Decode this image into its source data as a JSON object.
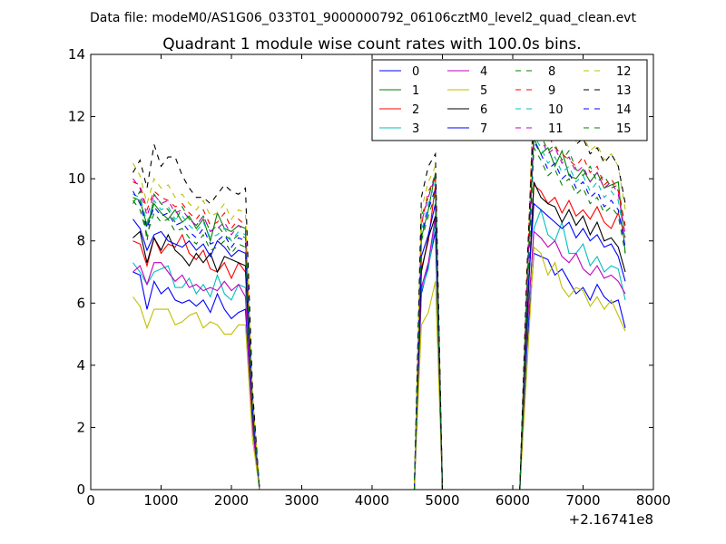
{
  "chart_data": {
    "type": "line",
    "suptitle": "Data file: modeM0/AS1G06_033T01_9000000792_06106cztM0_level2_quad_clean.evt",
    "title": "Quadrant 1 module wise count rates with 100.0s bins.",
    "xlabel": "",
    "ylabel": "",
    "x_offset_label": "+2.16741e8",
    "xlim": [
      0,
      8000
    ],
    "ylim": [
      0,
      14
    ],
    "x_ticks": [
      0,
      1000,
      2000,
      3000,
      4000,
      5000,
      6000,
      7000,
      8000
    ],
    "y_ticks": [
      0,
      2,
      4,
      6,
      8,
      10,
      12,
      14
    ],
    "x_tick_labels": [
      "0",
      "1000",
      "2000",
      "3000",
      "4000",
      "5000",
      "6000",
      "7000",
      "8000"
    ],
    "y_tick_labels": [
      "0",
      "2",
      "4",
      "6",
      "8",
      "10",
      "12",
      "14"
    ],
    "grid": false,
    "legend_position": "top-right",
    "legend_labels": [
      "0",
      "1",
      "2",
      "3",
      "4",
      "5",
      "6",
      "7",
      "8",
      "9",
      "10",
      "11",
      "12",
      "13",
      "14",
      "15"
    ],
    "x": [
      600,
      700,
      800,
      900,
      1000,
      1100,
      1200,
      1300,
      1400,
      1500,
      1600,
      1700,
      1800,
      1900,
      2000,
      2100,
      2200,
      2300,
      2400,
      2500,
      4600,
      4700,
      4800,
      4900,
      5000,
      6100,
      6200,
      6300,
      6400,
      6500,
      6600,
      6700,
      6800,
      6900,
      7000,
      7100,
      7200,
      7300,
      7400,
      7500,
      7600
    ],
    "series": [
      {
        "name": "0",
        "color": "#0000ff",
        "dashed": false,
        "values": [
          7.0,
          6.9,
          5.8,
          6.7,
          6.3,
          6.5,
          6.1,
          6.0,
          6.1,
          5.9,
          6.1,
          5.7,
          6.3,
          5.8,
          5.5,
          5.7,
          5.8,
          2.0,
          0.0,
          0.0,
          0.0,
          6.3,
          7.2,
          8.3,
          0.0,
          0.0,
          4.5,
          7.6,
          7.5,
          7.4,
          6.9,
          7.1,
          6.7,
          6.3,
          6.5,
          6.1,
          6.6,
          6.2,
          6.0,
          6.1,
          5.2
        ]
      },
      {
        "name": "1",
        "color": "#008000",
        "dashed": false,
        "values": [
          9.4,
          9.3,
          8.5,
          9.2,
          8.9,
          8.7,
          9.0,
          8.6,
          8.8,
          8.4,
          8.7,
          8.0,
          8.9,
          8.4,
          8.3,
          8.5,
          8.4,
          3.0,
          0.0,
          0.0,
          0.0,
          8.1,
          9.0,
          10.2,
          0.0,
          0.0,
          6.5,
          11.3,
          10.8,
          11.0,
          10.4,
          10.9,
          10.1,
          10.0,
          10.3,
          9.9,
          10.2,
          9.7,
          9.8,
          9.9,
          7.6
        ]
      },
      {
        "name": "2",
        "color": "#ff0000",
        "dashed": false,
        "values": [
          8.0,
          7.9,
          7.2,
          8.1,
          7.6,
          7.9,
          7.8,
          8.2,
          7.6,
          7.4,
          7.7,
          7.1,
          7.0,
          7.3,
          6.8,
          7.3,
          7.0,
          2.5,
          0.0,
          0.0,
          0.0,
          7.1,
          8.0,
          9.8,
          0.0,
          0.0,
          5.5,
          9.8,
          9.6,
          9.2,
          9.4,
          8.9,
          9.3,
          8.8,
          9.0,
          8.7,
          9.1,
          8.6,
          8.4,
          8.9,
          8.1
        ]
      },
      {
        "name": "3",
        "color": "#00bfbf",
        "dashed": false,
        "values": [
          7.3,
          7.0,
          6.6,
          7.0,
          7.1,
          7.2,
          6.5,
          6.5,
          6.8,
          6.3,
          6.6,
          6.2,
          6.9,
          6.3,
          6.1,
          6.6,
          6.5,
          2.1,
          0.0,
          0.0,
          0.0,
          6.4,
          7.1,
          8.6,
          0.0,
          0.0,
          4.8,
          8.4,
          9.0,
          8.2,
          8.0,
          8.6,
          7.6,
          7.6,
          7.9,
          7.2,
          7.5,
          7.0,
          7.2,
          7.1,
          6.1
        ]
      },
      {
        "name": "4",
        "color": "#bf00bf",
        "dashed": false,
        "values": [
          7.0,
          7.2,
          6.6,
          7.3,
          7.3,
          7.0,
          6.7,
          6.9,
          6.5,
          6.6,
          6.4,
          6.5,
          6.4,
          6.7,
          6.4,
          6.6,
          6.2,
          2.0,
          0.0,
          0.0,
          0.0,
          6.5,
          7.3,
          8.8,
          0.0,
          0.0,
          5.0,
          8.3,
          8.1,
          7.8,
          8.0,
          7.5,
          7.3,
          7.6,
          7.1,
          6.9,
          7.2,
          6.8,
          6.9,
          6.7,
          6.3
        ]
      },
      {
        "name": "5",
        "color": "#bfbf00",
        "dashed": false,
        "values": [
          6.2,
          5.9,
          5.2,
          5.8,
          5.8,
          5.8,
          5.3,
          5.4,
          5.6,
          5.7,
          5.2,
          5.4,
          5.3,
          5.0,
          5.0,
          5.3,
          5.3,
          1.6,
          0.0,
          0.0,
          0.0,
          5.3,
          5.7,
          6.7,
          0.0,
          0.0,
          3.8,
          7.8,
          7.6,
          6.9,
          7.3,
          6.5,
          6.2,
          6.5,
          6.4,
          5.9,
          6.2,
          5.8,
          6.1,
          5.6,
          5.1
        ]
      },
      {
        "name": "6",
        "color": "#000000",
        "dashed": false,
        "values": [
          8.1,
          8.3,
          7.3,
          8.1,
          7.7,
          8.2,
          7.7,
          7.5,
          7.2,
          7.6,
          7.3,
          7.6,
          7.0,
          7.5,
          7.4,
          7.3,
          7.2,
          2.4,
          0.0,
          0.0,
          0.0,
          7.0,
          8.1,
          8.8,
          0.0,
          0.0,
          5.3,
          9.9,
          9.4,
          9.2,
          9.1,
          8.6,
          9.0,
          8.5,
          8.8,
          8.2,
          8.6,
          8.0,
          8.1,
          7.8,
          7.0
        ]
      },
      {
        "name": "7",
        "color": "#0000ff",
        "dashed": false,
        "values": [
          8.7,
          8.4,
          7.7,
          8.2,
          8.3,
          8.0,
          7.9,
          7.8,
          8.0,
          7.7,
          7.9,
          7.5,
          8.0,
          7.8,
          7.5,
          7.7,
          7.6,
          2.5,
          0.0,
          0.0,
          0.0,
          7.5,
          8.2,
          9.2,
          0.0,
          0.0,
          5.8,
          9.2,
          9.0,
          8.8,
          8.6,
          8.4,
          8.6,
          8.1,
          8.4,
          8.0,
          8.2,
          7.8,
          7.9,
          7.5,
          6.7
        ]
      },
      {
        "name": "8",
        "color": "#008000",
        "dashed": true,
        "values": [
          9.2,
          9.6,
          8.0,
          9.5,
          9.2,
          9.0,
          8.6,
          9.1,
          8.7,
          8.5,
          8.8,
          8.3,
          8.5,
          8.2,
          8.0,
          8.2,
          8.1,
          2.8,
          0.0,
          0.0,
          0.0,
          8.8,
          9.4,
          10.2,
          0.0,
          0.0,
          6.2,
          12.0,
          11.4,
          10.9,
          11.1,
          10.6,
          10.9,
          10.3,
          10.1,
          10.4,
          9.9,
          10.1,
          9.7,
          9.8,
          8.3
        ]
      },
      {
        "name": "9",
        "color": "#ff0000",
        "dashed": true,
        "values": [
          9.9,
          9.8,
          9.0,
          9.6,
          9.4,
          9.3,
          9.1,
          9.2,
          8.9,
          8.7,
          9.0,
          8.5,
          8.6,
          8.9,
          8.4,
          8.7,
          8.5,
          2.9,
          0.0,
          0.0,
          0.0,
          8.5,
          9.6,
          10.0,
          0.0,
          0.0,
          6.6,
          12.8,
          12.0,
          11.4,
          11.0,
          10.8,
          10.6,
          10.4,
          10.7,
          10.2,
          10.4,
          9.8,
          10.0,
          9.6,
          8.5
        ]
      },
      {
        "name": "10",
        "color": "#00bfbf",
        "dashed": true,
        "values": [
          9.5,
          9.4,
          8.6,
          9.3,
          9.0,
          9.1,
          8.7,
          8.8,
          8.5,
          8.3,
          8.6,
          8.1,
          8.2,
          8.4,
          8.0,
          8.3,
          8.2,
          2.7,
          0.0,
          0.0,
          0.0,
          8.3,
          9.2,
          9.9,
          0.0,
          0.0,
          6.0,
          11.4,
          11.0,
          10.5,
          10.7,
          10.2,
          10.4,
          9.9,
          10.1,
          9.6,
          9.9,
          9.4,
          9.6,
          9.3,
          8.0
        ]
      },
      {
        "name": "11",
        "color": "#bf00bf",
        "dashed": true,
        "values": [
          10.0,
          9.7,
          8.8,
          9.5,
          9.2,
          9.3,
          8.9,
          9.0,
          8.7,
          8.5,
          8.8,
          8.3,
          8.4,
          8.6,
          8.2,
          8.5,
          8.3,
          2.8,
          0.0,
          0.0,
          0.0,
          8.6,
          9.4,
          10.1,
          0.0,
          0.0,
          6.3,
          11.8,
          11.3,
          10.8,
          11.0,
          10.5,
          10.7,
          10.2,
          10.4,
          9.9,
          10.2,
          9.7,
          9.9,
          9.5,
          8.2
        ]
      },
      {
        "name": "12",
        "color": "#bfbf00",
        "dashed": true,
        "values": [
          10.5,
          10.1,
          9.2,
          10.0,
          9.7,
          9.8,
          9.4,
          9.5,
          9.2,
          9.0,
          9.3,
          8.8,
          8.9,
          9.2,
          8.7,
          9.0,
          8.9,
          3.0,
          0.0,
          0.0,
          0.0,
          9.0,
          9.9,
          10.4,
          0.0,
          0.0,
          6.8,
          12.9,
          12.4,
          11.9,
          12.1,
          11.5,
          11.7,
          11.2,
          11.4,
          10.9,
          11.1,
          10.6,
          10.8,
          10.4,
          9.0
        ]
      },
      {
        "name": "13",
        "color": "#000000",
        "dashed": true,
        "values": [
          10.2,
          10.6,
          9.7,
          11.1,
          10.4,
          10.7,
          10.7,
          10.1,
          9.7,
          9.4,
          9.4,
          9.2,
          9.5,
          9.8,
          9.6,
          9.5,
          9.7,
          3.2,
          0.0,
          0.0,
          0.0,
          9.4,
          10.4,
          10.8,
          0.0,
          0.0,
          7.0,
          12.2,
          12.1,
          11.6,
          11.9,
          11.4,
          11.7,
          11.1,
          11.3,
          10.8,
          11.0,
          10.5,
          10.8,
          10.4,
          9.2
        ]
      },
      {
        "name": "14",
        "color": "#0000ff",
        "dashed": true,
        "values": [
          9.6,
          9.2,
          8.4,
          9.1,
          8.8,
          8.9,
          8.5,
          8.6,
          8.3,
          8.1,
          8.4,
          7.9,
          8.0,
          8.2,
          7.8,
          8.1,
          8.0,
          2.7,
          0.0,
          0.0,
          0.0,
          8.2,
          9.0,
          9.7,
          0.0,
          0.0,
          5.9,
          11.2,
          10.8,
          10.3,
          10.5,
          10.0,
          10.2,
          9.7,
          9.9,
          9.4,
          9.6,
          9.1,
          9.3,
          9.0,
          7.8
        ]
      },
      {
        "name": "15",
        "color": "#008000",
        "dashed": true,
        "values": [
          9.3,
          9.0,
          8.2,
          8.9,
          8.6,
          8.7,
          8.3,
          8.4,
          8.1,
          7.9,
          8.2,
          7.7,
          7.8,
          8.0,
          7.6,
          7.9,
          7.8,
          2.6,
          0.0,
          0.0,
          0.0,
          8.0,
          8.8,
          9.5,
          0.0,
          0.0,
          5.7,
          11.0,
          10.6,
          10.1,
          10.3,
          9.8,
          10.0,
          9.5,
          9.7,
          9.2,
          9.4,
          8.9,
          9.1,
          8.8,
          7.6
        ]
      }
    ]
  }
}
